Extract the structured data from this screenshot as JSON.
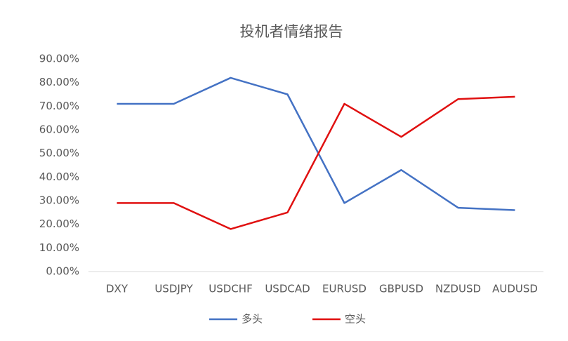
{
  "chart_data": {
    "type": "line",
    "title": "投机者情绪报告",
    "categories": [
      "DXY",
      "USDJPY",
      "USDCHF",
      "USDCAD",
      "EURUSD",
      "GBPUSD",
      "NZDUSD",
      "AUDUSD"
    ],
    "series": [
      {
        "name": "多头",
        "color": "#4472c4",
        "values": [
          71,
          71,
          82,
          75,
          29,
          43,
          27,
          26
        ]
      },
      {
        "name": "空头",
        "color": "#e01010",
        "values": [
          29,
          29,
          18,
          25,
          71,
          57,
          73,
          74
        ]
      }
    ],
    "ylim": [
      0,
      90
    ],
    "yticks": [
      {
        "value": 0,
        "label": "0.00%"
      },
      {
        "value": 10,
        "label": "10.00%"
      },
      {
        "value": 20,
        "label": "20.00%"
      },
      {
        "value": 30,
        "label": "30.00%"
      },
      {
        "value": 40,
        "label": "40.00%"
      },
      {
        "value": 50,
        "label": "50.00%"
      },
      {
        "value": 60,
        "label": "60.00%"
      },
      {
        "value": 70,
        "label": "70.00%"
      },
      {
        "value": 80,
        "label": "80.00%"
      },
      {
        "value": 90,
        "label": "90.00%"
      }
    ],
    "legend": "bottom"
  }
}
